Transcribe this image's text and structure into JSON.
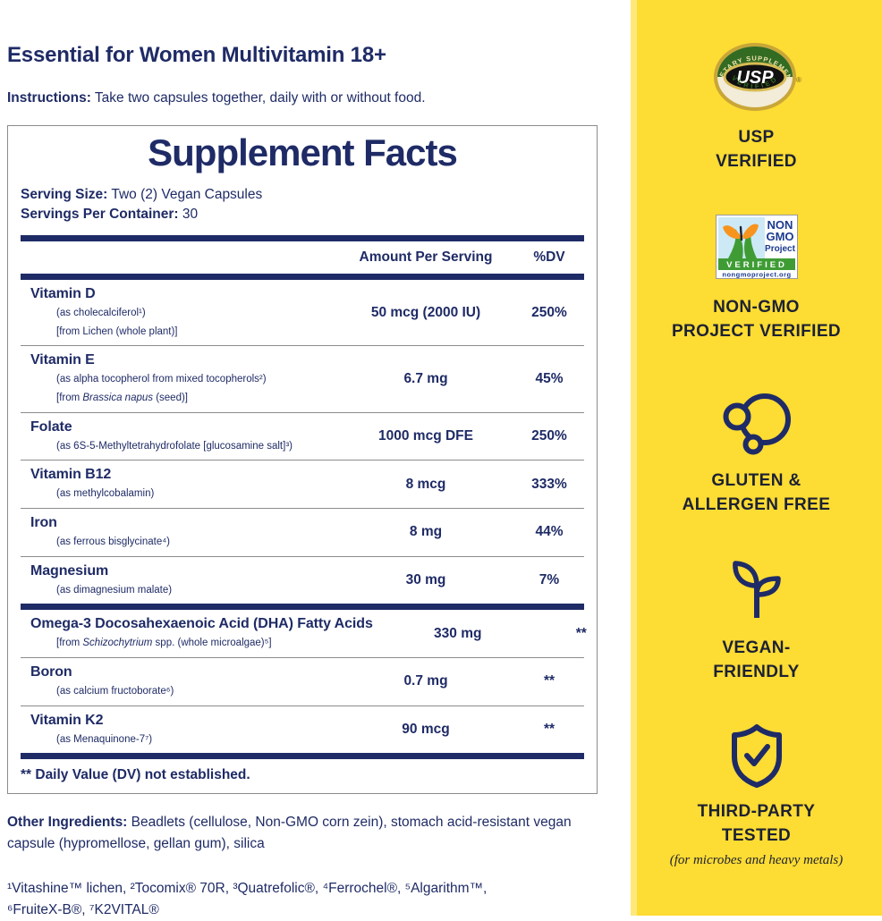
{
  "colors": {
    "yellow": "#fddc33",
    "navy": "#1f2b66",
    "sidebar_text": "#1d2133",
    "border_gray": "#8c8c8c",
    "nongmo_green": "#3f9c35",
    "nongmo_blue": "#1b3a8f",
    "nongmo_sky": "#cde9f6",
    "butterfly_orange": "#f7941e",
    "usp_gold": "#c9a637",
    "usp_green": "#336b22"
  },
  "header": {
    "title": "Essential for Women Multivitamin 18+",
    "instructions_label": "Instructions:",
    "instructions_text": " Take two capsules together, daily with or without food."
  },
  "supplement_facts": {
    "title": "Supplement Facts",
    "serving_size_label": "Serving Size:",
    "serving_size_value": " Two (2) Vegan Capsules",
    "servings_label": "Servings Per Container:",
    "servings_value": " 30",
    "col_amount": "Amount Per Serving",
    "col_dv": "%DV",
    "rows": [
      {
        "name": "Vitamin D",
        "sub": [
          "(as cholecalciferol¹)",
          "[from Lichen (whole plant)]"
        ],
        "amount": "50 mcg (2000 IU)",
        "dv": "250%",
        "divider_after": "thin"
      },
      {
        "name": "Vitamin E",
        "sub": [
          "(as alpha tocopherol from mixed tocopherols²)",
          "[from <i>Brassica napus</i> (seed)]"
        ],
        "amount": "6.7 mg",
        "dv": "45%",
        "divider_after": "thin"
      },
      {
        "name": "Folate",
        "sub": [
          "(as 6S-5-Methyltetrahydrofolate [glucosamine salt]³)"
        ],
        "amount": "1000 mcg DFE",
        "dv": "250%",
        "divider_after": "thin"
      },
      {
        "name": "Vitamin B12",
        "sub": [
          "(as methylcobalamin)"
        ],
        "amount": "8 mcg",
        "dv": "333%",
        "divider_after": "thin"
      },
      {
        "name": "Iron",
        "sub": [
          "(as ferrous bisglycinate⁴)"
        ],
        "amount": "8 mg",
        "dv": "44%",
        "divider_after": "thin"
      },
      {
        "name": "Magnesium",
        "sub": [
          "(as dimagnesium malate)"
        ],
        "amount": "30 mg",
        "dv": "7%",
        "divider_after": "thick"
      },
      {
        "name": "Omega-3 Docosahexaenoic Acid (DHA) Fatty Acids",
        "sub": [
          "[from <i>Schizochytrium</i> spp. (whole microalgae)⁵]"
        ],
        "amount": "330 mg",
        "dv": "**",
        "divider_after": "thin"
      },
      {
        "name": "Boron",
        "sub": [
          "(as calcium fructoborate⁶)"
        ],
        "amount": "0.7 mg",
        "dv": "**",
        "divider_after": "thin"
      },
      {
        "name": "Vitamin K2",
        "sub": [
          "(as Menaquinone-7⁷)"
        ],
        "amount": "90 mcg",
        "dv": "**",
        "divider_after": "thick"
      }
    ],
    "dv_footnote": "** Daily Value (DV) not established."
  },
  "other_ingredients": {
    "label": "Other Ingredients:",
    "text": " Beadlets (cellulose, Non-GMO corn zein), stomach acid-resistant vegan capsule (hypromellose, gellan gum), silica"
  },
  "footnotes": "¹Vitashine™ lichen, ²Tocomix® 70R, ³Quatrefolic®, ⁴Ferrochel®, ⁵Algarithm™,\n⁶FruiteX-B®, ⁷K2VITAL®",
  "sidebar": {
    "usp_badge": {
      "arc_top": "DIETARY SUPPLEMENT",
      "center": "USP",
      "arc_bottom": "VERIFIED",
      "reg_mark": "®"
    },
    "usp_label": "USP\nVERIFIED",
    "nongmo_badge": {
      "line1": "NON",
      "line2": "GMO",
      "line3": "Project",
      "verified": "VERIFIED",
      "url": "nongmoproject.org"
    },
    "nongmo_label": "NON-GMO\nPROJECT VERIFIED",
    "gluten_label": "GLUTEN &\nALLERGEN FREE",
    "vegan_label": "VEGAN-\nFRIENDLY",
    "tested_label": "THIRD-PARTY\nTESTED",
    "tested_note": "(for microbes and heavy metals)"
  }
}
